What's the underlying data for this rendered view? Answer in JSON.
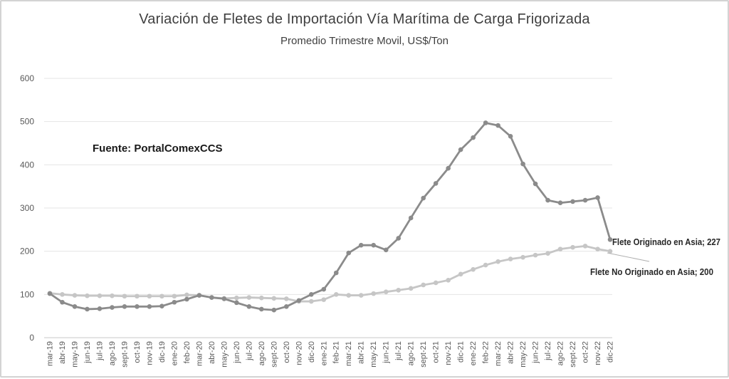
{
  "chart_data": {
    "type": "line",
    "title": "Variación de Fletes de Importación Vía Marítima de Carga Frigorizada",
    "subtitle": "Promedio Trimestre Movil, US$/Ton",
    "source_note": "Fuente: PortalComexCCS",
    "ylim": [
      0,
      600
    ],
    "y_ticks": [
      0,
      100,
      200,
      300,
      400,
      500,
      600
    ],
    "grid": true,
    "legend_position": "end-of-line-labels",
    "gridline_color": "#e4e4e4",
    "axis_line_color": "#c8c8c8",
    "axis_label_color": "#595959",
    "end_label_color": "#262626",
    "categories": [
      "mar-19",
      "abr-19",
      "may-19",
      "jun-19",
      "jul-19",
      "ago-19",
      "sept-19",
      "oct-19",
      "nov-19",
      "dic-19",
      "ene-20",
      "feb-20",
      "mar-20",
      "abr-20",
      "may-20",
      "jun-20",
      "jul-20",
      "ago-20",
      "sept-20",
      "oct-20",
      "nov-20",
      "dic-20",
      "ene-21",
      "feb-21",
      "mar-21",
      "abr-21",
      "may-21",
      "jun-21",
      "jul-21",
      "ago-21",
      "sept-21",
      "oct-21",
      "nov-21",
      "dic-21",
      "ene-22",
      "feb-22",
      "mar-22",
      "abr-22",
      "may-22",
      "jun-22",
      "jul-22",
      "ago-22",
      "sept-22",
      "oct-22",
      "nov-22",
      "dic-22"
    ],
    "series": [
      {
        "name": "Flete Originado en Asia",
        "end_label": "Flete Originado en Asia; 227",
        "last_value": 227,
        "color": "#8b8b8b",
        "values": [
          102,
          82,
          72,
          66,
          67,
          70,
          72,
          72,
          72,
          73,
          82,
          89,
          98,
          93,
          90,
          81,
          72,
          66,
          64,
          72,
          86,
          100,
          112,
          150,
          196,
          214,
          214,
          203,
          230,
          277,
          323,
          357,
          392,
          435,
          463,
          497,
          491,
          466,
          402,
          356,
          318,
          312,
          315,
          318,
          324,
          227
        ]
      },
      {
        "name": "Flete No Originado en Asia",
        "end_label": "Flete No Originado en Asia; 200",
        "last_value": 200,
        "color": "#c6c6c6",
        "values": [
          103,
          100,
          98,
          97,
          97,
          97,
          96,
          96,
          96,
          96,
          96,
          99,
          98,
          93,
          91,
          92,
          93,
          92,
          91,
          90,
          84,
          84,
          88,
          100,
          98,
          98,
          102,
          106,
          110,
          114,
          122,
          127,
          133,
          147,
          158,
          168,
          176,
          182,
          186,
          191,
          195,
          205,
          209,
          212,
          205,
          200
        ]
      }
    ]
  }
}
